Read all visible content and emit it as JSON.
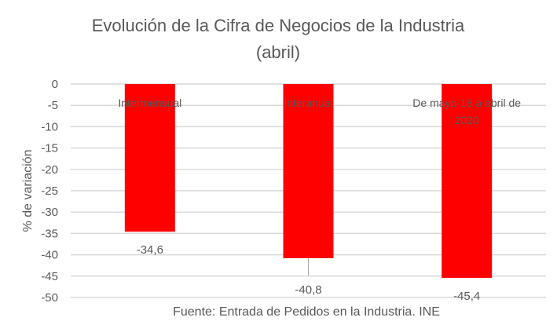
{
  "chart_data": {
    "type": "bar",
    "title": "Evolución de la Cifra de Negocios de la Industria (abril)",
    "title_lines": [
      "Evolución de la Cifra de Negocios de la Industria",
      "(abril)"
    ],
    "categories": [
      "Intermensual",
      "Interanual",
      "De mayo-18 a abril de 2020"
    ],
    "category_lines": [
      [
        "Intermensual"
      ],
      [
        "Interanual"
      ],
      [
        "De mayo-18 a abril de",
        "2020"
      ]
    ],
    "values": [
      -34.6,
      -40.8,
      -45.4
    ],
    "data_labels": [
      "-34,6",
      "-40,8",
      "-45,4"
    ],
    "ylabel": "% de variación",
    "xlabel": "Fuente: Entrada de Pedidos en la Industria. INE",
    "ylim": [
      -50,
      0
    ],
    "yticks": [
      0,
      -5,
      -10,
      -15,
      -20,
      -25,
      -30,
      -35,
      -40,
      -45,
      -50
    ],
    "grid": true,
    "bar_color": "#FF0000",
    "text_color": "#595959",
    "grid_color": "#D9D9D9"
  }
}
